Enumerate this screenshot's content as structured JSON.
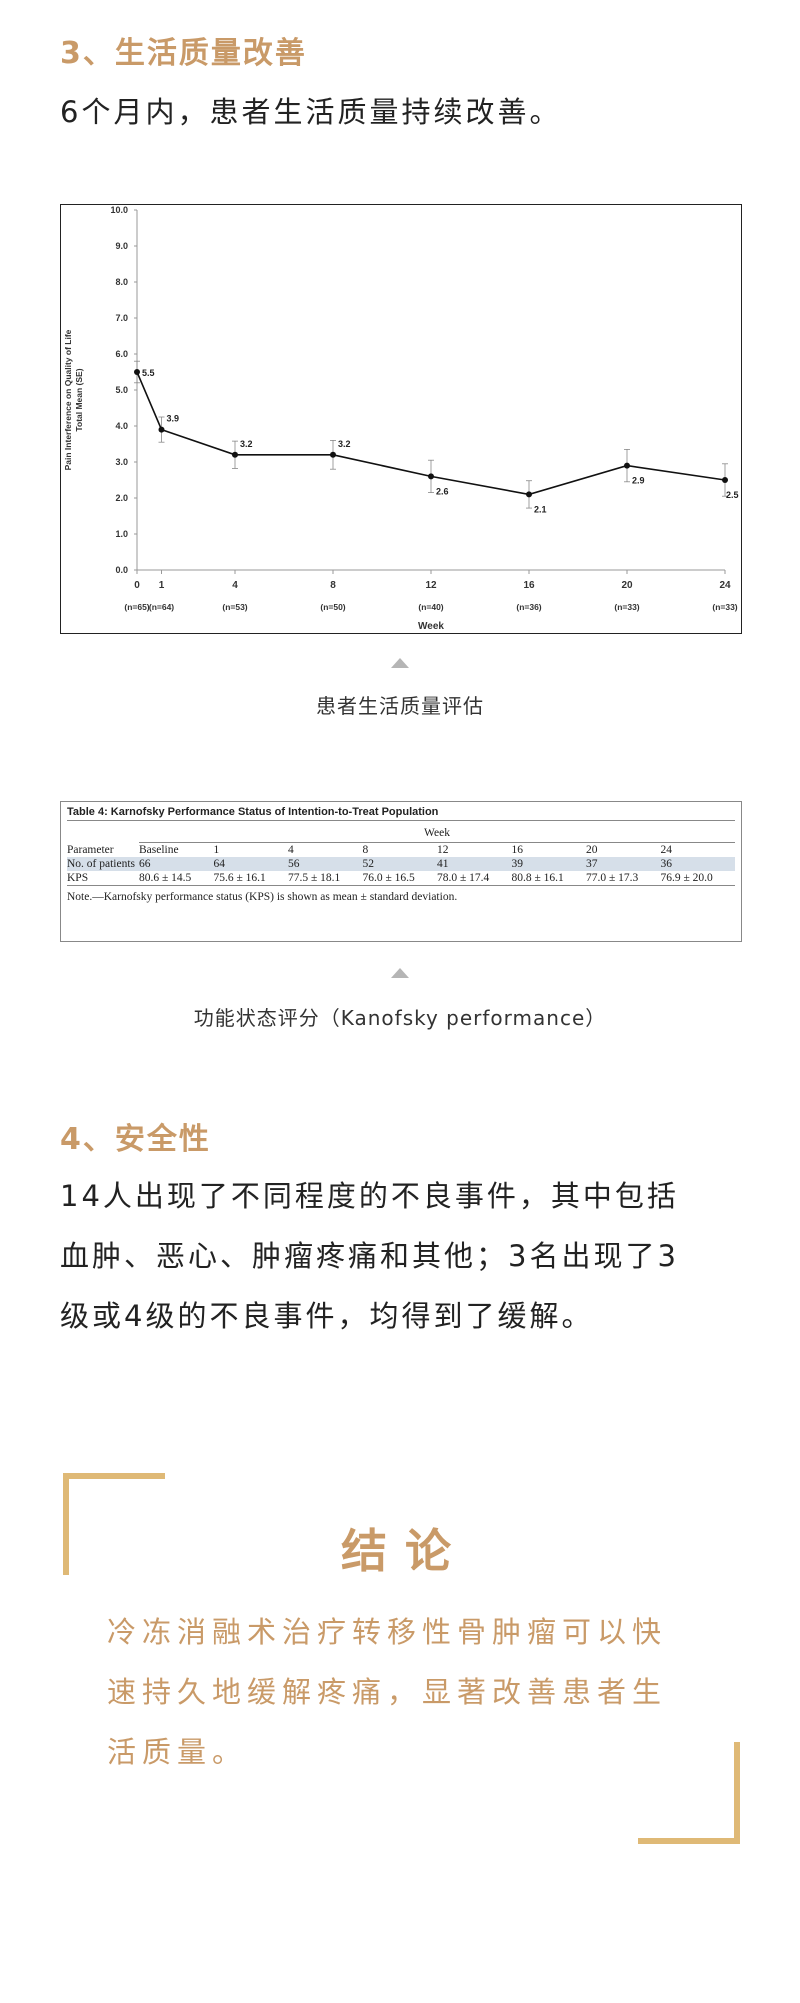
{
  "section3": {
    "heading": "3、生活质量改善",
    "body": "6个月内，患者生活质量持续改善。"
  },
  "chart_data": {
    "type": "line",
    "title": "",
    "xlabel": "Week",
    "ylabel": "Pain Interference on Quality of Life Total Mean (SE)",
    "ylabel_lines": [
      "Pain Interference on Quality of Life",
      "Total Mean (SE)"
    ],
    "xlim": [
      0,
      24
    ],
    "ylim": [
      0,
      10
    ],
    "y_ticks": [
      "0.0",
      "1.0",
      "2.0",
      "3.0",
      "4.0",
      "5.0",
      "6.0",
      "7.0",
      "8.0",
      "9.0",
      "10.0"
    ],
    "x": [
      0,
      1,
      4,
      8,
      12,
      16,
      20,
      24
    ],
    "x_tick_labels": [
      "0",
      "1",
      "4",
      "8",
      "12",
      "16",
      "20",
      "24"
    ],
    "n_labels": [
      "(n=65)",
      "(n=64)",
      "(n=53)",
      "(n=50)",
      "(n=40)",
      "(n=36)",
      "(n=33)",
      "(n=33)"
    ],
    "values": [
      5.5,
      3.9,
      3.2,
      3.2,
      2.6,
      2.1,
      2.9,
      2.5
    ],
    "data_labels": [
      "5.5",
      "3.9",
      "3.2",
      "3.2",
      "2.6",
      "2.1",
      "2.9",
      "2.5"
    ],
    "se": [
      0.3,
      0.35,
      0.38,
      0.4,
      0.45,
      0.38,
      0.45,
      0.45
    ],
    "grid": false,
    "line_color": "#111111"
  },
  "caption1": "患者生活质量评估",
  "table4": {
    "title": "Table 4: Karnofsky Performance Status of Intention-to-Treat Population",
    "group_header": "Week",
    "columns": [
      "Parameter",
      "Baseline",
      "1",
      "4",
      "8",
      "12",
      "16",
      "20",
      "24"
    ],
    "rows": [
      [
        "No. of patients",
        "66",
        "64",
        "56",
        "52",
        "41",
        "39",
        "37",
        "36"
      ],
      [
        "KPS",
        "80.6 ± 14.5",
        "75.6 ± 16.1",
        "77.5 ± 18.1",
        "76.0 ± 16.5",
        "78.0 ± 17.4",
        "80.8 ± 16.1",
        "77.0 ± 17.3",
        "76.9 ± 20.0"
      ]
    ],
    "note": "Note.—Karnofsky performance status (KPS) is shown as mean ± standard deviation."
  },
  "caption2": "功能状态评分（Kanofsky performance）",
  "section4": {
    "heading": "4、安全性",
    "lines": [
      "14人出现了不同程度的不良事件，其中包括",
      "血肿、恶心、肿瘤疼痛和其他；3名出现了3",
      "级或4级的不良事件，均得到了缓解。"
    ]
  },
  "conclusion": {
    "title": "结论",
    "lines": [
      "冷冻消融术治疗转移性骨肿瘤可以快",
      "速持久地缓解疼痛，显著改善患者生",
      "活质量。"
    ]
  },
  "colors": {
    "accent": "#c99a68",
    "frame": "#dfb976",
    "table_shade": "#d6dfe9"
  }
}
